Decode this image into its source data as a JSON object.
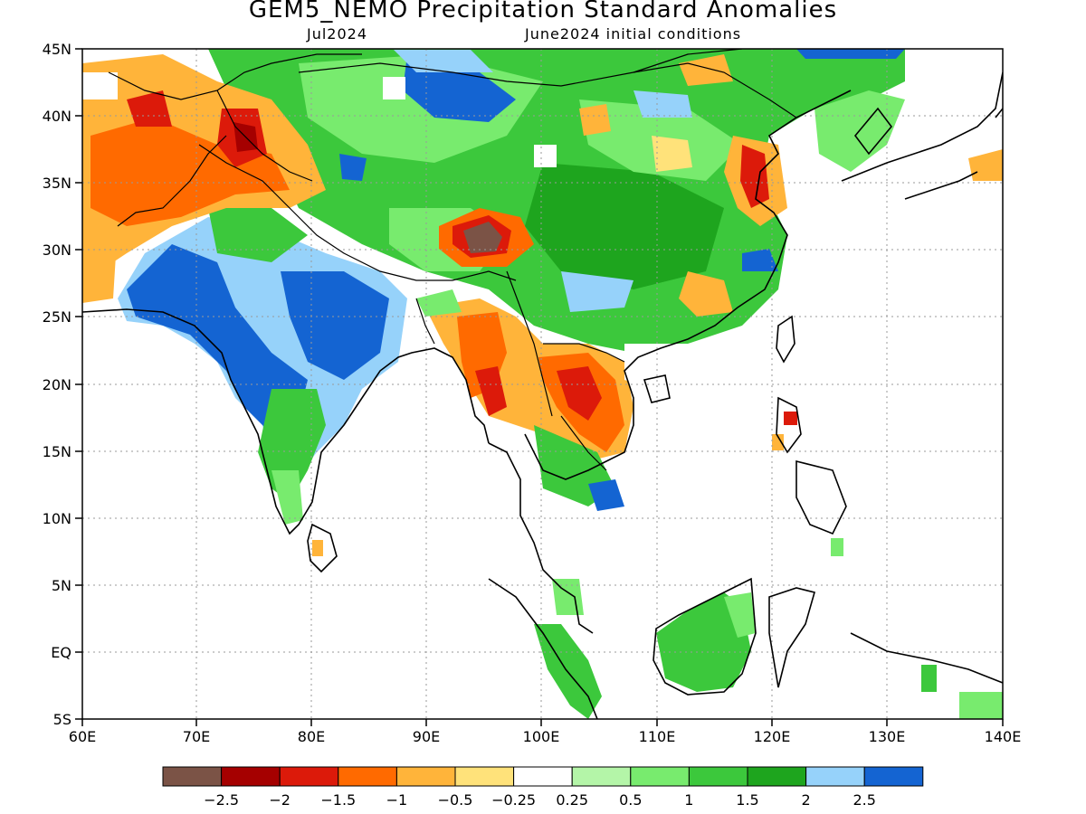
{
  "title": "GEM5_NEMO Precipitation Standard Anomalies",
  "subtitle_left": "Jul2024",
  "subtitle_right": "June2024 initial conditions",
  "map": {
    "lon_range": [
      60,
      140
    ],
    "lat_range": [
      -5,
      45
    ],
    "lon_ticks": [
      "60E",
      "70E",
      "80E",
      "90E",
      "100E",
      "110E",
      "120E",
      "130E",
      "140E"
    ],
    "lat_ticks": [
      "45N",
      "40N",
      "35N",
      "30N",
      "25N",
      "20N",
      "15N",
      "10N",
      "5N",
      "EQ",
      "5S"
    ],
    "gridlines": "dotted"
  },
  "colorbar": {
    "colors": [
      "#7b5346",
      "#a50000",
      "#dc1a0a",
      "#ff6a00",
      "#ffb43a",
      "#ffe27a",
      "#ffffff",
      "#b4f5a8",
      "#78eb6e",
      "#3cc83c",
      "#1ea51e",
      "#96d2fa",
      "#1464d2"
    ],
    "labels": [
      "−2.5",
      "−2",
      "−1.5",
      "−1",
      "−0.5",
      "−0.25",
      "0.25",
      "0.5",
      "1",
      "1.5",
      "2",
      "2.5"
    ]
  }
}
